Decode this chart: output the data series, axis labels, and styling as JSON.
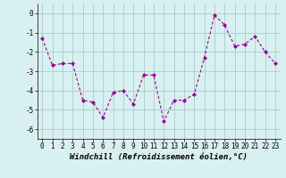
{
  "xlabel": "Windchill (Refroidissement éolien,°C)",
  "x": [
    0,
    1,
    2,
    3,
    4,
    5,
    6,
    7,
    8,
    9,
    10,
    11,
    12,
    13,
    14,
    15,
    16,
    17,
    18,
    19,
    20,
    21,
    22,
    23
  ],
  "y": [
    -1.3,
    -2.7,
    -2.6,
    -2.6,
    -4.5,
    -4.6,
    -5.4,
    -4.1,
    -4.0,
    -4.7,
    -3.2,
    -3.2,
    -5.6,
    -4.5,
    -4.5,
    -4.2,
    -2.3,
    -0.1,
    -0.6,
    -1.7,
    -1.6,
    -1.2,
    -2.0,
    -2.6
  ],
  "line_color": "#990099",
  "marker": "D",
  "marker_size": 2,
  "bg_color": "#d8f0f0",
  "grid_color": "#aacccc",
  "xlim": [
    -0.5,
    23.5
  ],
  "ylim": [
    -6.5,
    0.5
  ],
  "yticks": [
    0,
    -1,
    -2,
    -3,
    -4,
    -5,
    -6
  ],
  "xticks": [
    0,
    1,
    2,
    3,
    4,
    5,
    6,
    7,
    8,
    9,
    10,
    11,
    12,
    13,
    14,
    15,
    16,
    17,
    18,
    19,
    20,
    21,
    22,
    23
  ],
  "tick_fontsize": 5.5,
  "label_fontsize": 6.5
}
